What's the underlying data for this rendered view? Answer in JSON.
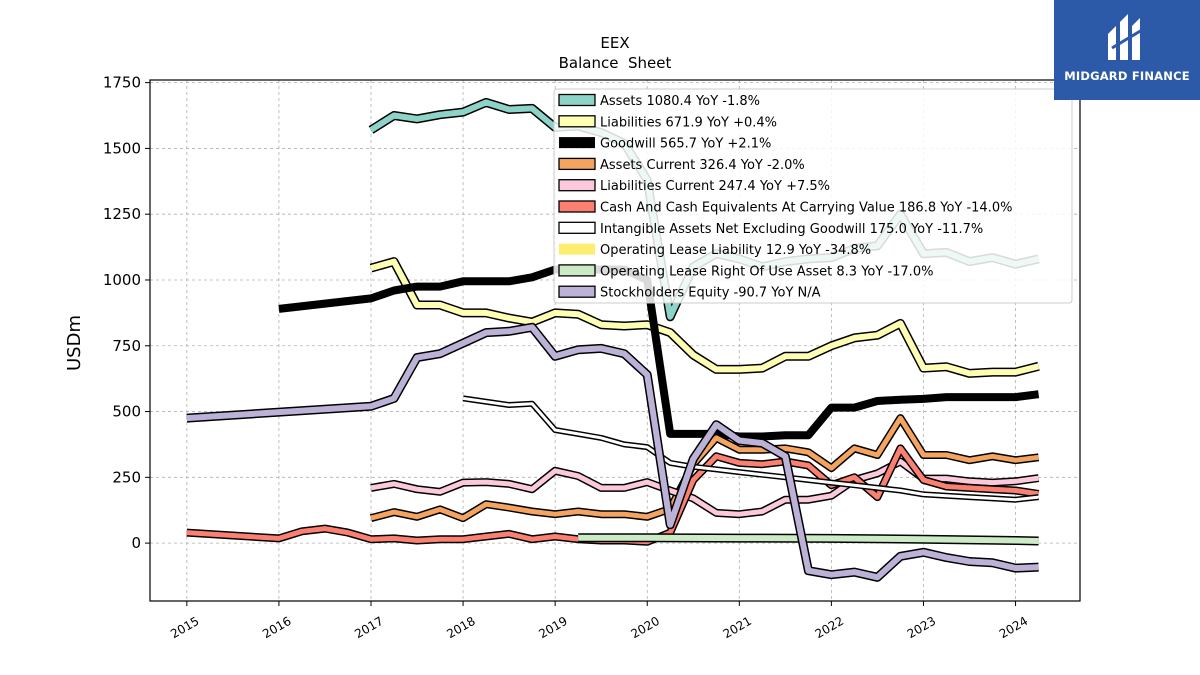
{
  "chart_data": {
    "type": "line",
    "title": "EEX",
    "subtitle": "Balance  Sheet",
    "ylabel": "USDm",
    "xlabel": "",
    "ylim": [
      -220,
      1760
    ],
    "xlim": [
      2014.6,
      2024.7
    ],
    "yticks": [
      0,
      250,
      500,
      750,
      1000,
      1250,
      1500,
      1750
    ],
    "xticks": [
      2015,
      2016,
      2017,
      2018,
      2019,
      2020,
      2021,
      2022,
      2023,
      2024
    ],
    "xtick_labels": [
      "2015",
      "2016",
      "2017",
      "2018",
      "2019",
      "2020",
      "2021",
      "2022",
      "2023",
      "2024"
    ],
    "grid": true,
    "legend_position": "top-right",
    "series": [
      {
        "name": "Assets",
        "legend": "Assets  1080.4 YoY -1.8%",
        "color": "#8dd3c7",
        "width": 6,
        "outline": true,
        "x": [
          2017.0,
          2017.25,
          2017.5,
          2017.75,
          2018.0,
          2018.25,
          2018.5,
          2018.75,
          2019.0,
          2019.25,
          2019.5,
          2019.75,
          2020.0,
          2020.25,
          2020.5,
          2020.75,
          2021.0,
          2021.25,
          2021.5,
          2021.75,
          2022.0,
          2022.25,
          2022.5,
          2022.75,
          2023.0,
          2023.25,
          2023.5,
          2023.75,
          2024.0,
          2024.25
        ],
        "y": [
          1570,
          1625,
          1612,
          1628,
          1638,
          1675,
          1648,
          1652,
          1580,
          1585,
          1560,
          1520,
          1380,
          860,
          1050,
          1100,
          1080,
          1050,
          1070,
          1080,
          1085,
          1120,
          1130,
          1250,
          1100,
          1105,
          1070,
          1085,
          1060,
          1080
        ]
      },
      {
        "name": "Liabilities",
        "legend": "Liabilities  671.9 YoY +0.4%",
        "color": "#ffffb3",
        "width": 6,
        "outline": true,
        "x": [
          2017.0,
          2017.25,
          2017.5,
          2017.75,
          2018.0,
          2018.25,
          2018.5,
          2018.75,
          2019.0,
          2019.25,
          2019.5,
          2019.75,
          2020.0,
          2020.25,
          2020.5,
          2020.75,
          2021.0,
          2021.25,
          2021.5,
          2021.75,
          2022.0,
          2022.25,
          2022.5,
          2022.75,
          2023.0,
          2023.25,
          2023.5,
          2023.75,
          2024.0,
          2024.25
        ],
        "y": [
          1045,
          1070,
          905,
          905,
          875,
          875,
          855,
          840,
          875,
          870,
          830,
          825,
          830,
          800,
          715,
          660,
          660,
          665,
          710,
          710,
          750,
          780,
          790,
          835,
          665,
          670,
          645,
          650,
          650,
          672
        ]
      },
      {
        "name": "Goodwill",
        "legend": "Goodwill  565.7 YoY +2.1%",
        "color": "#000000",
        "width": 8,
        "outline": false,
        "x": [
          2016.0,
          2017.0,
          2017.25,
          2017.5,
          2017.75,
          2018.0,
          2018.25,
          2018.5,
          2018.75,
          2019.0,
          2019.25,
          2019.5,
          2019.75,
          2020.0,
          2020.25,
          2020.5,
          2020.75,
          2021.0,
          2021.25,
          2021.5,
          2021.75,
          2022.0,
          2022.25,
          2022.5,
          2022.75,
          2023.0,
          2023.25,
          2023.5,
          2023.75,
          2024.0,
          2024.25
        ],
        "y": [
          890,
          930,
          960,
          975,
          975,
          995,
          995,
          995,
          1010,
          1040,
          1040,
          1040,
          1040,
          1000,
          415,
          415,
          415,
          405,
          405,
          410,
          410,
          515,
          515,
          540,
          545,
          548,
          555,
          555,
          555,
          555,
          566
        ]
      },
      {
        "name": "Assets Current",
        "legend": "Assets Current  326.4 YoY -2.0%",
        "color": "#f4a460",
        "width": 5,
        "outline": true,
        "x": [
          2017.0,
          2017.25,
          2017.5,
          2017.75,
          2018.0,
          2018.25,
          2018.5,
          2018.75,
          2019.0,
          2019.25,
          2019.5,
          2019.75,
          2020.0,
          2020.25,
          2020.5,
          2020.75,
          2021.0,
          2021.25,
          2021.5,
          2021.75,
          2022.0,
          2022.25,
          2022.5,
          2022.75,
          2023.0,
          2023.25,
          2023.5,
          2023.75,
          2024.0,
          2024.25
        ],
        "y": [
          95,
          118,
          100,
          128,
          95,
          148,
          135,
          120,
          110,
          120,
          110,
          110,
          100,
          130,
          300,
          400,
          355,
          355,
          360,
          345,
          285,
          360,
          335,
          475,
          335,
          335,
          315,
          330,
          315,
          326
        ]
      },
      {
        "name": "Liabilities Current",
        "legend": "Liabilities Current  247.4 YoY +7.5%",
        "color": "#fbc8dc",
        "width": 5,
        "outline": true,
        "x": [
          2017.0,
          2017.25,
          2017.5,
          2017.75,
          2018.0,
          2018.25,
          2018.5,
          2018.75,
          2019.0,
          2019.25,
          2019.5,
          2019.75,
          2020.0,
          2020.25,
          2020.5,
          2020.75,
          2021.0,
          2021.25,
          2021.5,
          2021.75,
          2022.0,
          2022.25,
          2022.5,
          2022.75,
          2023.0,
          2023.25,
          2023.5,
          2023.75,
          2024.0,
          2024.25
        ],
        "y": [
          210,
          225,
          205,
          195,
          230,
          232,
          225,
          205,
          275,
          255,
          210,
          210,
          232,
          200,
          170,
          115,
          110,
          120,
          165,
          165,
          180,
          240,
          265,
          310,
          245,
          245,
          235,
          230,
          235,
          247
        ]
      },
      {
        "name": "Cash And Cash Equivalents At Carrying Value",
        "legend": "Cash And Cash Equivalents At Carrying Value  186.8 YoY -14.0%",
        "color": "#fb8072",
        "width": 5,
        "outline": true,
        "x": [
          2015.0,
          2016.0,
          2016.25,
          2016.5,
          2016.75,
          2017.0,
          2017.25,
          2017.5,
          2017.75,
          2018.0,
          2018.25,
          2018.5,
          2018.75,
          2019.0,
          2019.25,
          2019.5,
          2019.75,
          2020.0,
          2020.25,
          2020.5,
          2020.75,
          2021.0,
          2021.25,
          2021.5,
          2021.75,
          2022.0,
          2022.25,
          2022.5,
          2022.75,
          2023.0,
          2023.25,
          2023.5,
          2023.75,
          2024.0,
          2024.25
        ],
        "y": [
          40,
          18,
          45,
          55,
          40,
          15,
          18,
          10,
          15,
          15,
          25,
          35,
          15,
          25,
          15,
          10,
          10,
          5,
          40,
          240,
          330,
          305,
          300,
          310,
          295,
          220,
          250,
          175,
          360,
          240,
          215,
          210,
          205,
          200,
          187
        ]
      },
      {
        "name": "Intangible Assets Net Excluding Goodwill",
        "legend": "Intangible Assets Net Excluding Goodwill  175.0 YoY -11.7%",
        "color": "#ffffff",
        "width": 3,
        "outline": true,
        "x": [
          2018.0,
          2018.5,
          2018.75,
          2019.0,
          2019.25,
          2019.5,
          2019.75,
          2020.0,
          2020.25,
          2020.5,
          2020.75,
          2021.0,
          2021.25,
          2021.5,
          2021.75,
          2022.0,
          2022.25,
          2022.5,
          2022.75,
          2023.0,
          2023.25,
          2023.5,
          2023.75,
          2024.0,
          2024.25
        ],
        "y": [
          550,
          525,
          530,
          430,
          415,
          400,
          375,
          365,
          305,
          290,
          280,
          270,
          260,
          250,
          240,
          230,
          220,
          210,
          200,
          185,
          180,
          175,
          170,
          165,
          175
        ]
      },
      {
        "name": "Operating Lease Liability",
        "legend": "Operating Lease Liability  12.9 YoY -34.8%",
        "color": "#ffed6f",
        "width": 3,
        "outline": false,
        "x": [
          2019.25,
          2024.25
        ],
        "y": [
          22,
          13
        ]
      },
      {
        "name": "Operating Lease Right Of Use Asset",
        "legend": "Operating Lease Right Of Use Asset  8.3 YoY -17.0%",
        "color": "#ccebc5",
        "width": 6,
        "outline": true,
        "x": [
          2019.25,
          2020.0,
          2021.0,
          2022.0,
          2023.0,
          2024.0,
          2024.25
        ],
        "y": [
          20,
          20,
          19,
          18,
          15,
          10,
          8
        ]
      },
      {
        "name": "Stockholders Equity",
        "legend": "Stockholders Equity  -90.7 YoY N/A",
        "color": "#bcb2d8",
        "width": 6,
        "outline": true,
        "x": [
          2015.0,
          2017.0,
          2017.25,
          2017.5,
          2017.75,
          2018.0,
          2018.25,
          2018.5,
          2018.75,
          2019.0,
          2019.25,
          2019.5,
          2019.75,
          2020.0,
          2020.25,
          2020.5,
          2020.75,
          2021.0,
          2021.25,
          2021.5,
          2021.75,
          2022.0,
          2022.25,
          2022.5,
          2022.75,
          2023.0,
          2023.25,
          2023.5,
          2023.75,
          2024.0,
          2024.25
        ],
        "y": [
          475,
          520,
          550,
          705,
          720,
          760,
          800,
          805,
          820,
          710,
          735,
          740,
          720,
          640,
          70,
          320,
          450,
          390,
          380,
          330,
          -105,
          -120,
          -110,
          -130,
          -50,
          -35,
          -55,
          -70,
          -75,
          -95,
          -91
        ]
      }
    ]
  },
  "logo": {
    "text": "MIDGARD FINANCE"
  }
}
